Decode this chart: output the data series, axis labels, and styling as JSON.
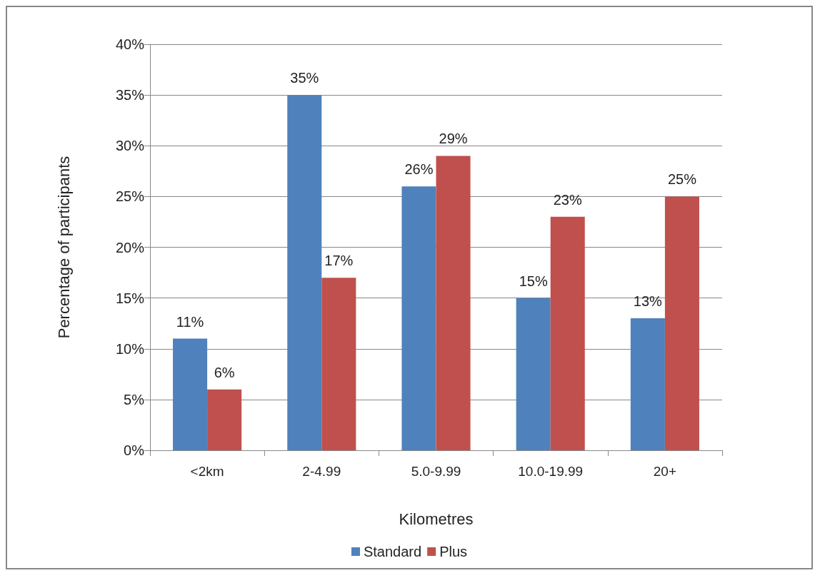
{
  "chart_data": {
    "type": "bar",
    "xlabel": "Kilometres",
    "ylabel": "Percentage of participants",
    "categories": [
      "<2km",
      "2-4.99",
      "5.0-9.99",
      "10.0-19.99",
      "20+"
    ],
    "series": [
      {
        "name": "Standard",
        "color": "#4f81bd",
        "values": [
          11,
          35,
          26,
          15,
          13
        ],
        "value_labels": [
          "11%",
          "35%",
          "26%",
          "15%",
          "13%"
        ]
      },
      {
        "name": "Plus",
        "color": "#c0504d",
        "values": [
          6,
          17,
          29,
          23,
          25
        ],
        "value_labels": [
          "6%",
          "17%",
          "29%",
          "23%",
          "25%"
        ]
      }
    ],
    "ylim": [
      0,
      40
    ],
    "yticks": [
      {
        "value": 0,
        "label": "0%"
      },
      {
        "value": 5,
        "label": "5%"
      },
      {
        "value": 10,
        "label": "10%"
      },
      {
        "value": 15,
        "label": "15%"
      },
      {
        "value": 20,
        "label": "20%"
      },
      {
        "value": 25,
        "label": "25%"
      },
      {
        "value": 30,
        "label": "30%"
      },
      {
        "value": 35,
        "label": "35%"
      },
      {
        "value": 40,
        "label": "40%"
      }
    ],
    "grid": "y",
    "legend": "bottom"
  }
}
